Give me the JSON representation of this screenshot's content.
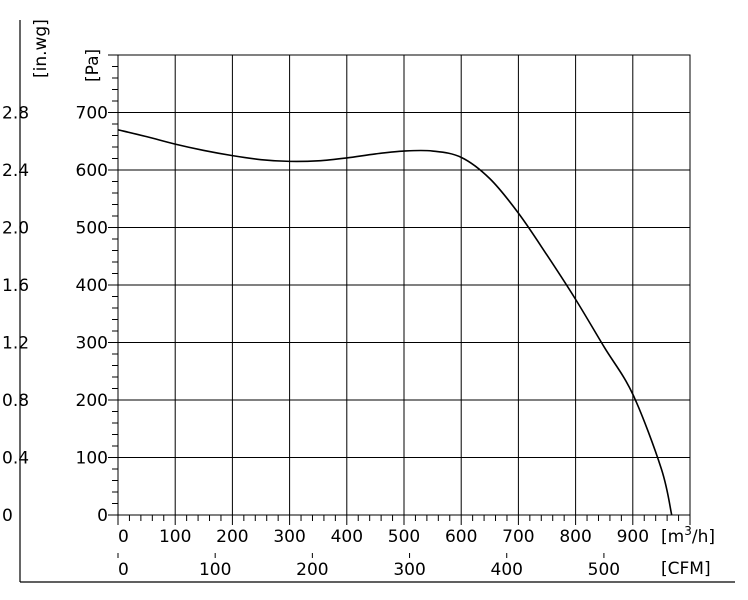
{
  "chart_data": {
    "type": "line",
    "x_axis_primary": {
      "unit_label": "[m³/h]",
      "unit_base": "[m",
      "unit_sup": "3",
      "unit_tail": "/h]",
      "ticks": [
        "0",
        "100",
        "200",
        "300",
        "400",
        "500",
        "600",
        "700",
        "800",
        "900"
      ],
      "range": [
        0,
        1000
      ]
    },
    "x_axis_secondary": {
      "unit_label": "[CFM]",
      "ticks": [
        "0",
        "100",
        "200",
        "300",
        "400",
        "500"
      ],
      "tick_values_m3h": [
        0,
        169.9,
        339.8,
        509.7,
        679.6,
        849.5
      ]
    },
    "y_axis_primary": {
      "unit_label": "[Pa]",
      "ticks": [
        "0",
        "100",
        "200",
        "300",
        "400",
        "500",
        "600",
        "700"
      ],
      "range": [
        0,
        800
      ]
    },
    "y_axis_secondary": {
      "unit_label": "[in.wg]",
      "ticks": [
        "0",
        "0.4",
        "0.8",
        "1.2",
        "1.6",
        "2.0",
        "2.4",
        "2.8"
      ]
    },
    "grid": true,
    "series": [
      {
        "x": [
          0,
          50,
          100,
          150,
          200,
          250,
          300,
          350,
          400,
          450,
          500,
          550,
          600,
          650,
          700,
          750,
          800,
          850,
          900,
          950,
          968
        ],
        "y": [
          670,
          658,
          645,
          634,
          625,
          618,
          615,
          616,
          621,
          628,
          633,
          633,
          622,
          585,
          525,
          452,
          375,
          292,
          210,
          80,
          0
        ]
      }
    ]
  }
}
